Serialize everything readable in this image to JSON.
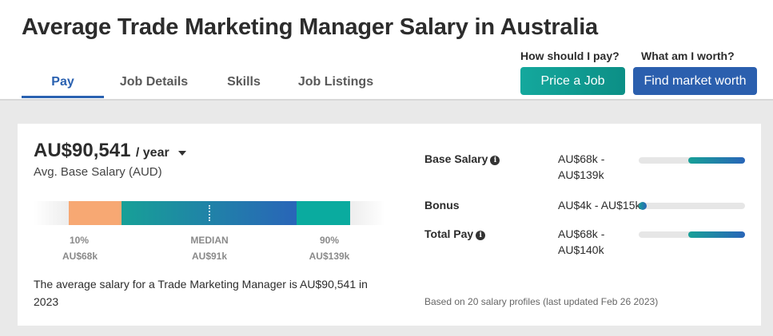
{
  "title": "Average Trade Marketing Manager Salary in Australia",
  "tabs": [
    {
      "label": "Pay",
      "active": true
    },
    {
      "label": "Job Details",
      "active": false
    },
    {
      "label": "Skills",
      "active": false
    },
    {
      "label": "Job Listings",
      "active": false
    }
  ],
  "cta": {
    "price_question": "How should I pay?",
    "price_button": "Price a Job",
    "worth_question": "What am I worth?",
    "worth_button": "Find market worth"
  },
  "salary": {
    "amount": "AU$90,541",
    "period": "/ year",
    "caption": "Avg. Base Salary (AUD)",
    "range": {
      "p10_label": "10%",
      "p10_value": "AU$68k",
      "median_label": "MEDIAN",
      "median_value": "AU$91k",
      "p90_label": "90%",
      "p90_value": "AU$139k"
    },
    "summary": "The average salary for a Trade Marketing Manager is AU$90,541 in 2023"
  },
  "breakdown": [
    {
      "label": "Base Salary",
      "info": true,
      "value_line1": "AU$68k -",
      "value_line2": "AU$139k"
    },
    {
      "label": "Bonus",
      "info": false,
      "value_line1": "AU$4k - AU$15k",
      "value_line2": ""
    },
    {
      "label": "Total Pay",
      "info": true,
      "value_line1": "AU$68k -",
      "value_line2": "AU$140k"
    }
  ],
  "footnote": "Based on 20 salary profiles (last updated Feb 26 2023)",
  "colors": {
    "accent_blue": "#2a61b0",
    "teal": "#14a89d",
    "orange": "#f7a873"
  },
  "icons": {
    "info": "info-icon",
    "caret": "caret-down-icon"
  }
}
